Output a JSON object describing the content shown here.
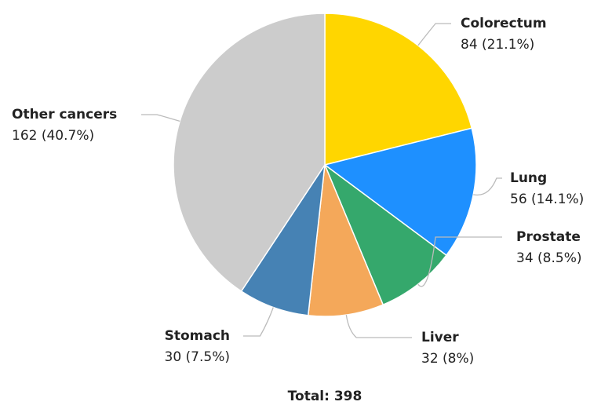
{
  "chart_data": {
    "type": "pie",
    "categories": [
      "Colorectum",
      "Lung",
      "Prostate",
      "Liver",
      "Stomach",
      "Other cancers"
    ],
    "values": [
      84,
      56,
      34,
      32,
      30,
      162
    ],
    "value_labels": [
      "84 (21.1%)",
      "56 (14.1%)",
      "34 (8.5%)",
      "32 (8%)",
      "30 (7.5%)",
      "162 (40.7%)"
    ],
    "colors": [
      "#ffd600",
      "#1e90ff",
      "#35a86c",
      "#f4a85a",
      "#4682b4",
      "#cccccc"
    ],
    "footer": "Total: 398"
  }
}
